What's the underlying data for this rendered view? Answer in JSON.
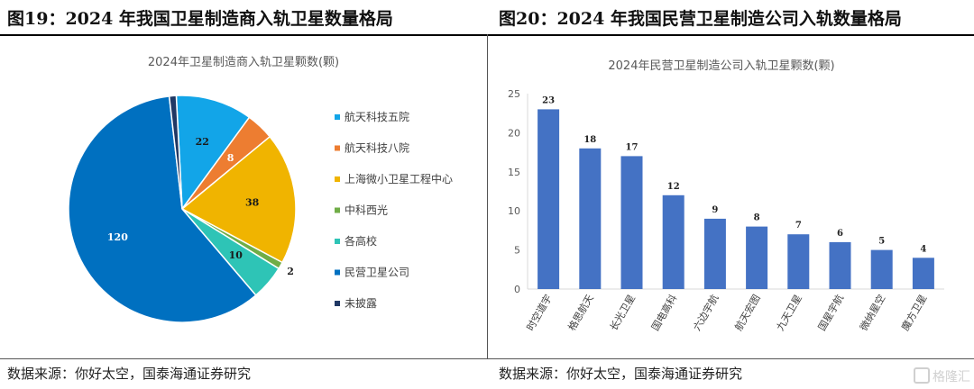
{
  "left": {
    "figure_title": "图19：2024 年我国卫星制造商入轨卫星数量格局",
    "source": "数据来源：你好太空，国泰海通证券研究"
  },
  "right": {
    "figure_title": "图20：2024 年我国民营卫星制造公司入轨数量格局",
    "source": "数据来源：你好太空，国泰海通证券研究"
  },
  "watermark": "格隆汇",
  "chart_data": [
    {
      "type": "pie",
      "title": "2024年卫星制造商入轨卫星颗数(颗)",
      "legend_position": "right",
      "start_angle_deg": -3,
      "slices": [
        {
          "label": "航天科技五院",
          "value": 22,
          "color": "#12A5E8",
          "label_color": "#1a1a1a"
        },
        {
          "label": "航天科技八院",
          "value": 8,
          "color": "#ED7D31",
          "label_color": "#ffffff"
        },
        {
          "label": "上海微小卫星工程中心",
          "value": 38,
          "color": "#F0B400",
          "label_color": "#1a1a1a"
        },
        {
          "label": "中科西光",
          "value": 2,
          "color": "#70AD47",
          "label_color": "#1a1a1a"
        },
        {
          "label": "各高校",
          "value": 10,
          "color": "#2EC4B6",
          "label_color": "#1a1a1a"
        },
        {
          "label": "民营卫星公司",
          "value": 120,
          "color": "#0070C0",
          "label_color": "#ffffff"
        },
        {
          "label": "未披露",
          "value": 2,
          "color": "#203864",
          "label_color": "#1a1a1a"
        }
      ]
    },
    {
      "type": "bar",
      "title": "2024年民营卫星制造公司入轨卫星颗数(颗)",
      "categories": [
        "时空道宇",
        "格思航天",
        "长光卫星",
        "国电高科",
        "六边宇航",
        "航天宏图",
        "九天卫星",
        "国星宇航",
        "微纳星空",
        "魔方卫星"
      ],
      "values": [
        23,
        18,
        17,
        12,
        9,
        8,
        7,
        6,
        5,
        4
      ],
      "ylim": [
        0,
        25
      ],
      "yticks": [
        0,
        5,
        10,
        15,
        20,
        25
      ],
      "bar_color": "#4472C4",
      "grid": false
    }
  ]
}
